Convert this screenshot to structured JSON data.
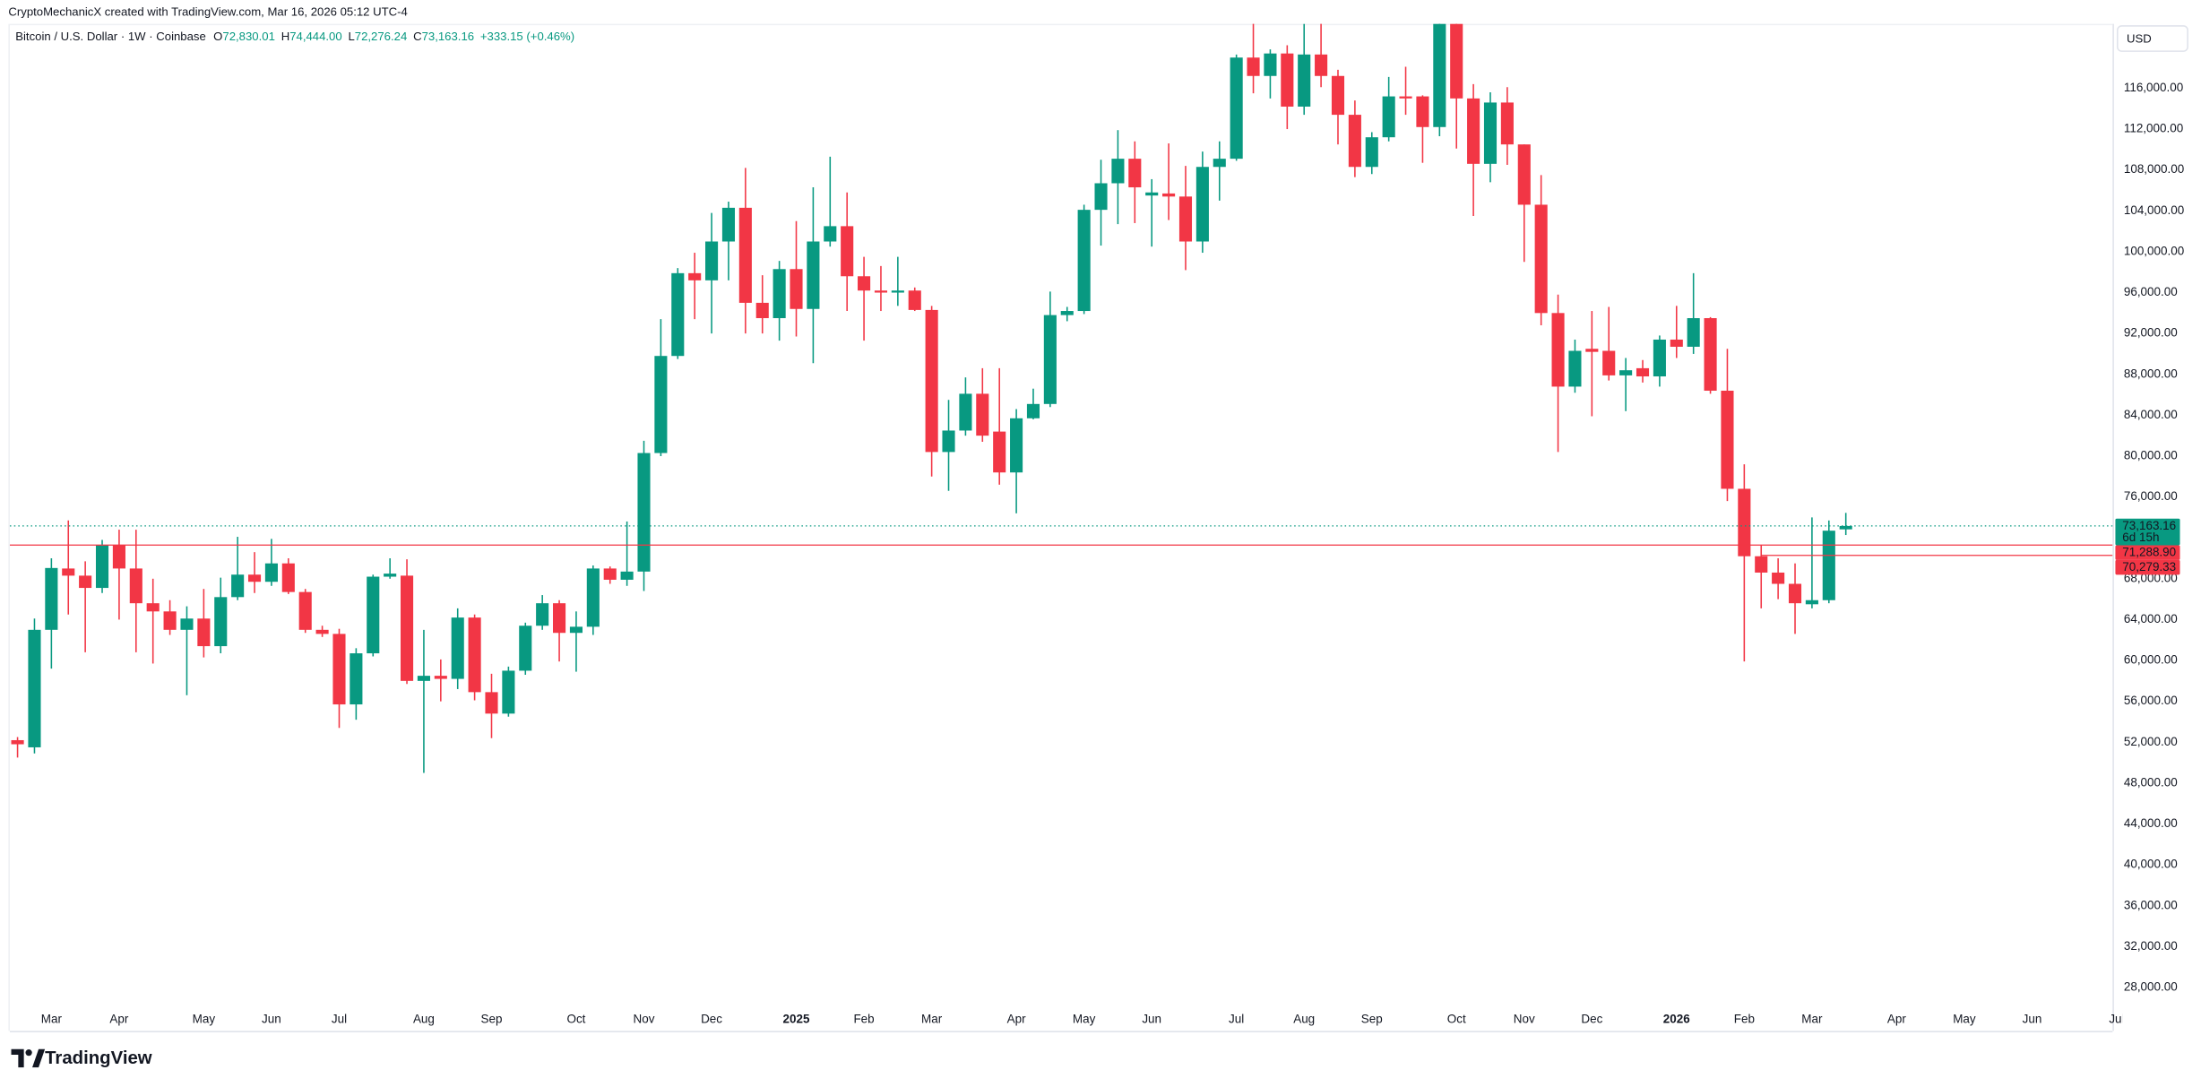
{
  "header": {
    "attribution": "CryptoMechanicX created with TradingView.com, Mar 16, 2026 05:12 UTC-4",
    "symbol": "Bitcoin / U.S. Dollar · 1W · Coinbase",
    "ohlc": [
      {
        "key": "O",
        "text": "72,830.01"
      },
      {
        "key": "H",
        "text": "74,444.00"
      },
      {
        "key": "L",
        "text": "72,276.24"
      },
      {
        "key": "C",
        "text": "73,163.16"
      }
    ],
    "change": "+333.15 (+0.46%)",
    "currency": "USD",
    "brand": "TradingView"
  },
  "chart_data": {
    "type": "candlestick",
    "up_color": "#089981",
    "down_color": "#f23645",
    "categories": [
      null,
      null,
      "Mar",
      null,
      null,
      null,
      "Apr",
      null,
      null,
      null,
      null,
      "May",
      null,
      null,
      null,
      "Jun",
      null,
      null,
      null,
      "Jul",
      null,
      null,
      null,
      null,
      "Aug",
      null,
      null,
      null,
      "Sep",
      null,
      null,
      null,
      null,
      "Oct",
      null,
      null,
      null,
      "Nov",
      null,
      null,
      null,
      "Dec",
      null,
      null,
      null,
      null,
      "2025",
      null,
      null,
      null,
      "Feb",
      null,
      null,
      null,
      "Mar",
      null,
      null,
      null,
      null,
      "Apr",
      null,
      null,
      null,
      "May",
      null,
      null,
      null,
      "Jun",
      null,
      null,
      null,
      null,
      "Jul",
      null,
      null,
      null,
      "Aug",
      null,
      null,
      null,
      "Sep",
      null,
      null,
      null,
      null,
      "Oct",
      null,
      null,
      null,
      "Nov",
      null,
      null,
      null,
      "Dec",
      null,
      null,
      null,
      null,
      "2026",
      null,
      null,
      null,
      "Feb",
      null,
      null,
      null,
      "Mar",
      null,
      null,
      null,
      null,
      "Apr",
      null,
      null,
      null,
      "May",
      null,
      null,
      null,
      "Jun",
      null,
      null,
      null,
      null,
      "Jul"
    ],
    "open": [
      52200,
      51500,
      63000,
      69000,
      68300,
      67100,
      71300,
      69000,
      65600,
      64800,
      63000,
      64100,
      61400,
      66200,
      68400,
      67700,
      69500,
      66700,
      63000,
      62600,
      55700,
      60700,
      68200,
      68300,
      58000,
      58500,
      58200,
      64200,
      56900,
      54800,
      59000,
      63400,
      65600,
      62700,
      63300,
      69000,
      67900,
      68700,
      80300,
      89800,
      97900,
      97200,
      101000,
      104300,
      95000,
      93500,
      98300,
      94400,
      101000,
      102500,
      97600,
      96200,
      96000,
      96200,
      94300,
      80400,
      82500,
      86100,
      82400,
      78400,
      83700,
      85100,
      93800,
      94200,
      104100,
      106700,
      109100,
      105500,
      105700,
      105400,
      101000,
      108300,
      109100,
      119000,
      117200,
      119400,
      114200,
      119300,
      117200,
      113400,
      108300,
      111200,
      115200,
      115200,
      112200,
      122300,
      115000,
      108600,
      114600,
      110500,
      104600,
      94000,
      86800,
      90500,
      90300,
      87900,
      88600,
      87800,
      91400,
      90700,
      93500,
      86400,
      76800,
      70200,
      68600,
      67500,
      65500,
      65900,
      72830.01,
      null,
      null,
      null,
      null,
      null,
      null,
      null,
      null,
      null,
      null,
      null,
      null,
      null,
      null,
      null,
      null
    ],
    "high": [
      52500,
      64100,
      70000,
      73700,
      69700,
      71800,
      72800,
      72800,
      68000,
      65900,
      65300,
      67000,
      68100,
      72100,
      70600,
      71900,
      70000,
      67000,
      63400,
      63100,
      61200,
      68400,
      70000,
      69900,
      63000,
      60100,
      65100,
      64500,
      58700,
      59400,
      63700,
      66400,
      65900,
      64800,
      69300,
      69200,
      73600,
      81500,
      93400,
      98400,
      99900,
      103800,
      104900,
      108200,
      97700,
      99100,
      103000,
      106300,
      109300,
      105800,
      99500,
      98600,
      99500,
      96500,
      94700,
      85500,
      87700,
      88600,
      88600,
      84600,
      86600,
      96100,
      94600,
      104600,
      109000,
      111900,
      110800,
      107100,
      110600,
      108400,
      109800,
      110800,
      119300,
      122600,
      119800,
      120200,
      122300,
      122600,
      117800,
      114800,
      111700,
      117100,
      118100,
      115300,
      122600,
      122600,
      116400,
      115600,
      116100,
      110500,
      107500,
      95800,
      91400,
      94200,
      94600,
      89600,
      89400,
      91800,
      94700,
      97900,
      93600,
      90500,
      79200,
      71300,
      70000,
      69500,
      74000,
      73700,
      74444,
      null,
      null,
      null,
      null,
      null,
      null,
      null,
      null,
      null,
      null,
      null,
      null,
      null,
      null,
      null,
      null
    ],
    "low": [
      50500,
      50900,
      59200,
      64500,
      60800,
      66600,
      64000,
      60800,
      59700,
      62500,
      56600,
      60300,
      60700,
      65900,
      66600,
      67300,
      66500,
      62700,
      62300,
      53400,
      54200,
      60400,
      68000,
      57700,
      49000,
      56000,
      57200,
      56100,
      52400,
      54500,
      58600,
      63000,
      59900,
      58900,
      62500,
      67500,
      67300,
      66800,
      80000,
      89500,
      93400,
      92000,
      97200,
      92000,
      92000,
      91300,
      91700,
      89100,
      100500,
      94200,
      91300,
      94200,
      94700,
      94200,
      78000,
      76600,
      82000,
      81400,
      77200,
      74400,
      83600,
      84800,
      93200,
      93900,
      100600,
      102700,
      102800,
      100500,
      103100,
      98200,
      99900,
      105000,
      108900,
      115500,
      115000,
      112000,
      113400,
      116100,
      110500,
      107300,
      107600,
      110800,
      113400,
      108700,
      111300,
      110100,
      103500,
      106800,
      108500,
      99000,
      92800,
      80400,
      86200,
      83900,
      87400,
      84400,
      87200,
      86800,
      89600,
      90000,
      86100,
      75600,
      59900,
      65100,
      66000,
      62600,
      65100,
      65600,
      72276.24,
      null,
      null,
      null,
      null,
      null,
      null,
      null,
      null,
      null,
      null,
      null,
      null,
      null,
      null,
      null,
      null
    ],
    "close": [
      51800,
      63000,
      69050,
      68300,
      67100,
      71300,
      69000,
      65600,
      64800,
      63000,
      64100,
      61400,
      66200,
      68400,
      67700,
      69500,
      66700,
      63000,
      62600,
      55700,
      60700,
      68200,
      68500,
      58000,
      58500,
      58200,
      64200,
      56900,
      54800,
      59000,
      63400,
      65600,
      62700,
      63300,
      69000,
      67900,
      68700,
      80300,
      89800,
      97900,
      97200,
      101000,
      104300,
      95000,
      93500,
      98300,
      94400,
      101000,
      102500,
      97600,
      96200,
      96000,
      96200,
      94300,
      80400,
      82500,
      86100,
      82000,
      78400,
      83700,
      85100,
      93800,
      94200,
      104100,
      106700,
      109100,
      106300,
      105800,
      105400,
      101000,
      108300,
      109100,
      119000,
      117200,
      119400,
      114200,
      119300,
      117200,
      113400,
      108300,
      111200,
      115200,
      115000,
      112200,
      122300,
      115000,
      108600,
      114600,
      110500,
      104600,
      94000,
      86800,
      90300,
      90200,
      87900,
      88400,
      87800,
      91400,
      90700,
      93500,
      86400,
      76800,
      70200,
      68600,
      67500,
      65600,
      65900,
      72700,
      73163.16,
      null,
      null,
      null,
      null,
      null,
      null,
      null,
      null,
      null,
      null,
      null,
      null,
      null,
      null,
      null,
      null
    ],
    "ylim": [
      23750,
      122300
    ],
    "yticks": [
      {
        "value": 28000,
        "label": "28,000.00"
      },
      {
        "value": 32000,
        "label": "32,000.00"
      },
      {
        "value": 36000,
        "label": "36,000.00"
      },
      {
        "value": 40000,
        "label": "40,000.00"
      },
      {
        "value": 44000,
        "label": "44,000.00"
      },
      {
        "value": 48000,
        "label": "48,000.00"
      },
      {
        "value": 52000,
        "label": "52,000.00"
      },
      {
        "value": 56000,
        "label": "56,000.00"
      },
      {
        "value": 60000,
        "label": "60,000.00"
      },
      {
        "value": 64000,
        "label": "64,000.00"
      },
      {
        "value": 68000,
        "label": "68,000.00"
      },
      {
        "value": 72000,
        "label": "72,000.00"
      },
      {
        "value": 76000,
        "label": "76,000.00"
      },
      {
        "value": 80000,
        "label": "80,000.00"
      },
      {
        "value": 84000,
        "label": "84,000.00"
      },
      {
        "value": 88000,
        "label": "88,000.00"
      },
      {
        "value": 92000,
        "label": "92,000.00"
      },
      {
        "value": 96000,
        "label": "96,000.00"
      },
      {
        "value": 100000,
        "label": "100,000.00"
      },
      {
        "value": 104000,
        "label": "104,000.00"
      },
      {
        "value": 108000,
        "label": "108,000.00"
      },
      {
        "value": 112000,
        "label": "112,000.00"
      },
      {
        "value": 116000,
        "label": "116,000.00"
      }
    ],
    "price_lines": [
      {
        "value": 73163.16,
        "label": "73,163.16",
        "sublabel": "6d 15h",
        "color": "#089981",
        "style": "dotted"
      },
      {
        "value": 71288.9,
        "label": "71,288.90",
        "color": "#f23645",
        "style": "solid"
      },
      {
        "value": 70279.33,
        "label": "70,279.33",
        "color": "#f23645",
        "style": "solid",
        "from_category": 103
      }
    ],
    "grid": false
  }
}
